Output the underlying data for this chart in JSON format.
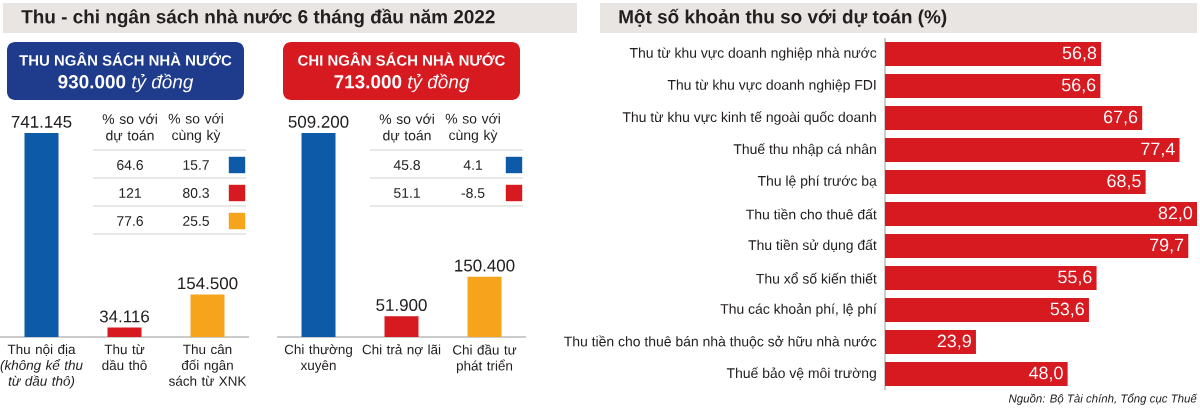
{
  "chart_data": [
    {
      "type": "bar",
      "title": "Thu - chi ngân sách nhà nước 6 tháng đầu năm 2022",
      "subtitle": "THU NGÂN SÁCH NHÀ NƯỚC",
      "annotations": [
        "**930.000** *tỷ đồng*"
      ],
      "categories": [
        "Thu nội địa *(không kể thu từ dầu thô)*",
        "Thu từ dầu thô",
        "Thu cân đối ngân sách từ XNK"
      ],
      "values": [
        741145,
        34116,
        154500
      ],
      "colors": [
        "#0c5aa8",
        "#d71920",
        "#f6a41c"
      ],
      "value_labels": [
        "741.145",
        "34.116",
        "154.500"
      ]
    },
    {
      "type": "other",
      "categories": [
        "% so với dự toán",
        "% so với cùng kỳ"
      ],
      "data_labels": true,
      "series": [
        {
          "color": "#0c5aa8",
          "values": [
            64.6,
            15.7
          ]
        },
        {
          "color": "#d71920",
          "values": [
            121,
            80.3
          ]
        },
        {
          "color": "#f6a41c",
          "values": [
            77.6,
            25.5
          ]
        }
      ]
    },
    {
      "type": "bar",
      "subtitle": "CHI NGÂN SÁCH NHÀ NƯỚC",
      "annotations": [
        "**713.000** *tỷ đồng*"
      ],
      "categories": [
        "Chi thường xuyên",
        "Chi trả nợ lãi",
        "Chi đầu tư phát triển"
      ],
      "values": [
        509200,
        51900,
        150400
      ],
      "colors": [
        "#0c5aa8",
        "#d71920",
        "#f6a41c"
      ],
      "value_labels": [
        "509.200",
        "51.900",
        "150.400"
      ]
    },
    {
      "type": "other",
      "categories": [
        "% so với dự toán",
        "% so với cùng kỳ"
      ],
      "data_labels": true,
      "series": [
        {
          "color": "#0c5aa8",
          "values": [
            45.8,
            4.1
          ]
        },
        {
          "color": "#d71920",
          "values": [
            51.1,
            -8.5
          ]
        }
      ]
    },
    {
      "type": "bar",
      "orientation": "horizontal",
      "title": "Một số khoản thu so với dự toán (%)",
      "categories": [
        "Thu từ khu vực doanh nghiệp nhà nước",
        "Thu từ khu vực doanh nghiệp FDI",
        "Thu từ khu vực kinh tế ngoài quốc doanh",
        "Thuế thu nhập cá nhân",
        "Thu lệ phí trước bạ",
        "Thu tiền cho thuê đất",
        "Thu tiền sử dụng đất",
        "Thu xổ số kiến thiết",
        "Thu các khoản phí, lệ phí",
        "Thu tiền cho thuê bán nhà thuộc sở hữu nhà nước",
        "Thuế bảo vệ môi trường"
      ],
      "values": [
        56.8,
        56.6,
        67.6,
        77.4,
        68.5,
        82.0,
        79.7,
        55.6,
        53.6,
        23.9,
        48.0
      ],
      "color": "#d71920",
      "value_labels": [
        "56,8",
        "56,6",
        "67,6",
        "77,4",
        "68,5",
        "82,0",
        "79,7",
        "55,6",
        "53,6",
        "23,9",
        "48,0"
      ],
      "annotations": [
        "Nguồn: Bộ Tài chính, Tổng cục Thuế"
      ]
    }
  ]
}
